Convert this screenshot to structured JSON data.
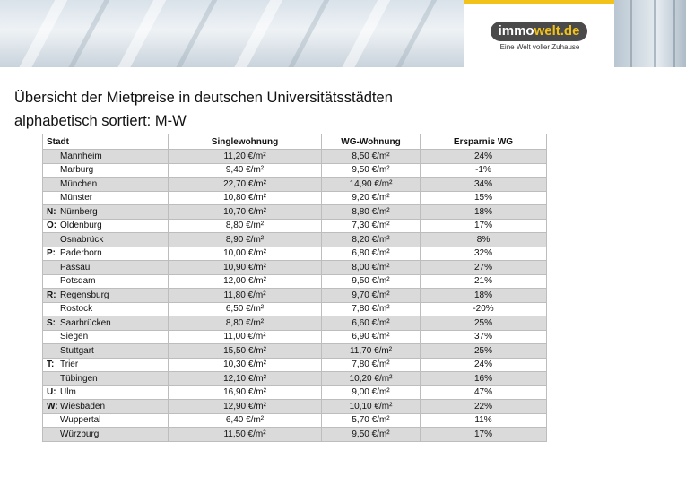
{
  "header": {
    "logo_part1": "immo",
    "logo_part2": "welt.de",
    "tagline": "Eine Welt voller Zuhause",
    "yellow": "#f2c21b"
  },
  "title_line1": "Übersicht der Mietpreise in deutschen Universitätsstädten",
  "title_line2": "alphabetisch sortiert: M-W",
  "table": {
    "headers": [
      "Stadt",
      "Singlewohnung",
      "WG-Wohnung",
      "Ersparnis WG"
    ],
    "rows": [
      {
        "letter": "",
        "city": "Mannheim",
        "single": "11,20 €/m²",
        "wg": "8,50 €/m²",
        "saving": "24%"
      },
      {
        "letter": "",
        "city": "Marburg",
        "single": "9,40 €/m²",
        "wg": "9,50 €/m²",
        "saving": "-1%"
      },
      {
        "letter": "",
        "city": "München",
        "single": "22,70 €/m²",
        "wg": "14,90 €/m²",
        "saving": "34%"
      },
      {
        "letter": "",
        "city": "Münster",
        "single": "10,80 €/m²",
        "wg": "9,20 €/m²",
        "saving": "15%"
      },
      {
        "letter": "N:",
        "city": "Nürnberg",
        "single": "10,70 €/m²",
        "wg": "8,80 €/m²",
        "saving": "18%"
      },
      {
        "letter": "O:",
        "city": "Oldenburg",
        "single": "8,80 €/m²",
        "wg": "7,30 €/m²",
        "saving": "17%"
      },
      {
        "letter": "",
        "city": "Osnabrück",
        "single": "8,90 €/m²",
        "wg": "8,20 €/m²",
        "saving": "8%"
      },
      {
        "letter": "P:",
        "city": "Paderborn",
        "single": "10,00 €/m²",
        "wg": "6,80 €/m²",
        "saving": "32%"
      },
      {
        "letter": "",
        "city": "Passau",
        "single": "10,90 €/m²",
        "wg": "8,00 €/m²",
        "saving": "27%"
      },
      {
        "letter": "",
        "city": "Potsdam",
        "single": "12,00 €/m²",
        "wg": "9,50 €/m²",
        "saving": "21%"
      },
      {
        "letter": "R:",
        "city": "Regensburg",
        "single": "11,80 €/m²",
        "wg": "9,70 €/m²",
        "saving": "18%"
      },
      {
        "letter": "",
        "city": "Rostock",
        "single": "6,50 €/m²",
        "wg": "7,80 €/m²",
        "saving": "-20%"
      },
      {
        "letter": "S:",
        "city": "Saarbrücken",
        "single": "8,80 €/m²",
        "wg": "6,60 €/m²",
        "saving": "25%"
      },
      {
        "letter": "",
        "city": "Siegen",
        "single": "11,00 €/m²",
        "wg": "6,90 €/m²",
        "saving": "37%"
      },
      {
        "letter": "",
        "city": "Stuttgart",
        "single": "15,50 €/m²",
        "wg": "11,70 €/m²",
        "saving": "25%"
      },
      {
        "letter": "T:",
        "city": "Trier",
        "single": "10,30 €/m²",
        "wg": "7,80 €/m²",
        "saving": "24%"
      },
      {
        "letter": "",
        "city": "Tübingen",
        "single": "12,10 €/m²",
        "wg": "10,20 €/m²",
        "saving": "16%"
      },
      {
        "letter": "U:",
        "city": "Ulm",
        "single": "16,90 €/m²",
        "wg": "9,00 €/m²",
        "saving": "47%"
      },
      {
        "letter": "W:",
        "city": "Wiesbaden",
        "single": "12,90 €/m²",
        "wg": "10,10 €/m²",
        "saving": "22%"
      },
      {
        "letter": "",
        "city": "Wuppertal",
        "single": "6,40 €/m²",
        "wg": "5,70 €/m²",
        "saving": "11%"
      },
      {
        "letter": "",
        "city": "Würzburg",
        "single": "11,50 €/m²",
        "wg": "9,50 €/m²",
        "saving": "17%"
      }
    ]
  }
}
